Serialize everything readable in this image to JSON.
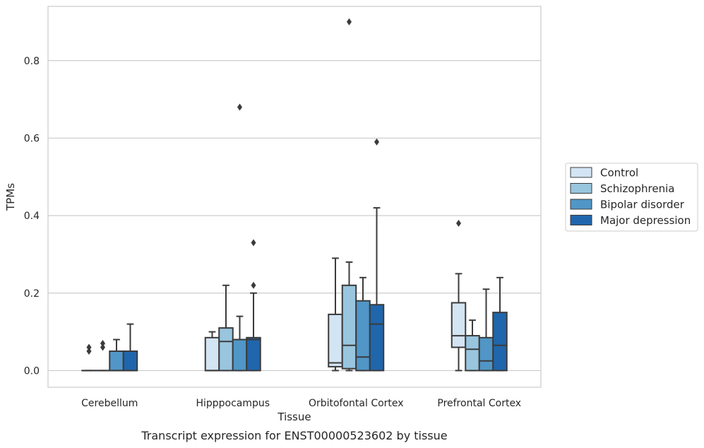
{
  "chart_data": {
    "type": "boxplot",
    "title": "",
    "caption": "Transcript expression for ENST00000523602 by tissue",
    "xlabel": "Tissue",
    "ylabel": "TPMs",
    "ylim": [
      -0.043,
      0.94
    ],
    "yticks": [
      0.0,
      0.2,
      0.4,
      0.6,
      0.8
    ],
    "ytick_labels": [
      "0.0",
      "0.2",
      "0.4",
      "0.6",
      "0.8"
    ],
    "grid": "horizontal",
    "legend_position": "right",
    "categories": [
      "Cerebellum",
      "Hipppocampus",
      "Orbitofontal Cortex",
      "Prefrontal Cortex"
    ],
    "series": [
      {
        "name": "Control",
        "color": "#d3e4f3",
        "boxes": [
          {
            "q1": 0.0,
            "median": 0.0,
            "q3": 0.0,
            "whisker_low": 0.0,
            "whisker_high": 0.0,
            "outliers": [
              0.05,
              0.06
            ]
          },
          {
            "q1": 0.0,
            "median": 0.0,
            "q3": 0.085,
            "whisker_low": 0.0,
            "whisker_high": 0.1,
            "outliers": []
          },
          {
            "q1": 0.01,
            "median": 0.02,
            "q3": 0.145,
            "whisker_low": 0.0,
            "whisker_high": 0.29,
            "outliers": []
          },
          {
            "q1": 0.06,
            "median": 0.09,
            "q3": 0.175,
            "whisker_low": 0.0,
            "whisker_high": 0.25,
            "outliers": [
              0.38
            ]
          }
        ]
      },
      {
        "name": "Schizophrenia",
        "color": "#99c5df",
        "boxes": [
          {
            "q1": 0.0,
            "median": 0.0,
            "q3": 0.0,
            "whisker_low": 0.0,
            "whisker_high": 0.0,
            "outliers": [
              0.06,
              0.07
            ]
          },
          {
            "q1": 0.0,
            "median": 0.075,
            "q3": 0.11,
            "whisker_low": 0.0,
            "whisker_high": 0.22,
            "outliers": []
          },
          {
            "q1": 0.005,
            "median": 0.065,
            "q3": 0.22,
            "whisker_low": 0.0,
            "whisker_high": 0.28,
            "outliers": [
              0.9
            ]
          },
          {
            "q1": 0.0,
            "median": 0.055,
            "q3": 0.09,
            "whisker_low": 0.0,
            "whisker_high": 0.13,
            "outliers": []
          }
        ]
      },
      {
        "name": "Bipolar disorder",
        "color": "#5096c6",
        "boxes": [
          {
            "q1": 0.0,
            "median": 0.0,
            "q3": 0.05,
            "whisker_low": 0.0,
            "whisker_high": 0.08,
            "outliers": []
          },
          {
            "q1": 0.0,
            "median": 0.08,
            "q3": 0.08,
            "whisker_low": 0.0,
            "whisker_high": 0.14,
            "outliers": [
              0.68
            ]
          },
          {
            "q1": 0.0,
            "median": 0.035,
            "q3": 0.18,
            "whisker_low": 0.0,
            "whisker_high": 0.24,
            "outliers": []
          },
          {
            "q1": 0.0,
            "median": 0.025,
            "q3": 0.085,
            "whisker_low": 0.0,
            "whisker_high": 0.21,
            "outliers": []
          }
        ]
      },
      {
        "name": "Major depression",
        "color": "#2066ac",
        "boxes": [
          {
            "q1": 0.0,
            "median": 0.0,
            "q3": 0.05,
            "whisker_low": 0.0,
            "whisker_high": 0.12,
            "outliers": []
          },
          {
            "q1": 0.0,
            "median": 0.08,
            "q3": 0.085,
            "whisker_low": 0.0,
            "whisker_high": 0.2,
            "outliers": [
              0.22,
              0.33
            ]
          },
          {
            "q1": 0.0,
            "median": 0.12,
            "q3": 0.17,
            "whisker_low": 0.0,
            "whisker_high": 0.42,
            "outliers": [
              0.59
            ]
          },
          {
            "q1": 0.0,
            "median": 0.065,
            "q3": 0.15,
            "whisker_low": 0.0,
            "whisker_high": 0.24,
            "outliers": []
          }
        ]
      }
    ]
  }
}
